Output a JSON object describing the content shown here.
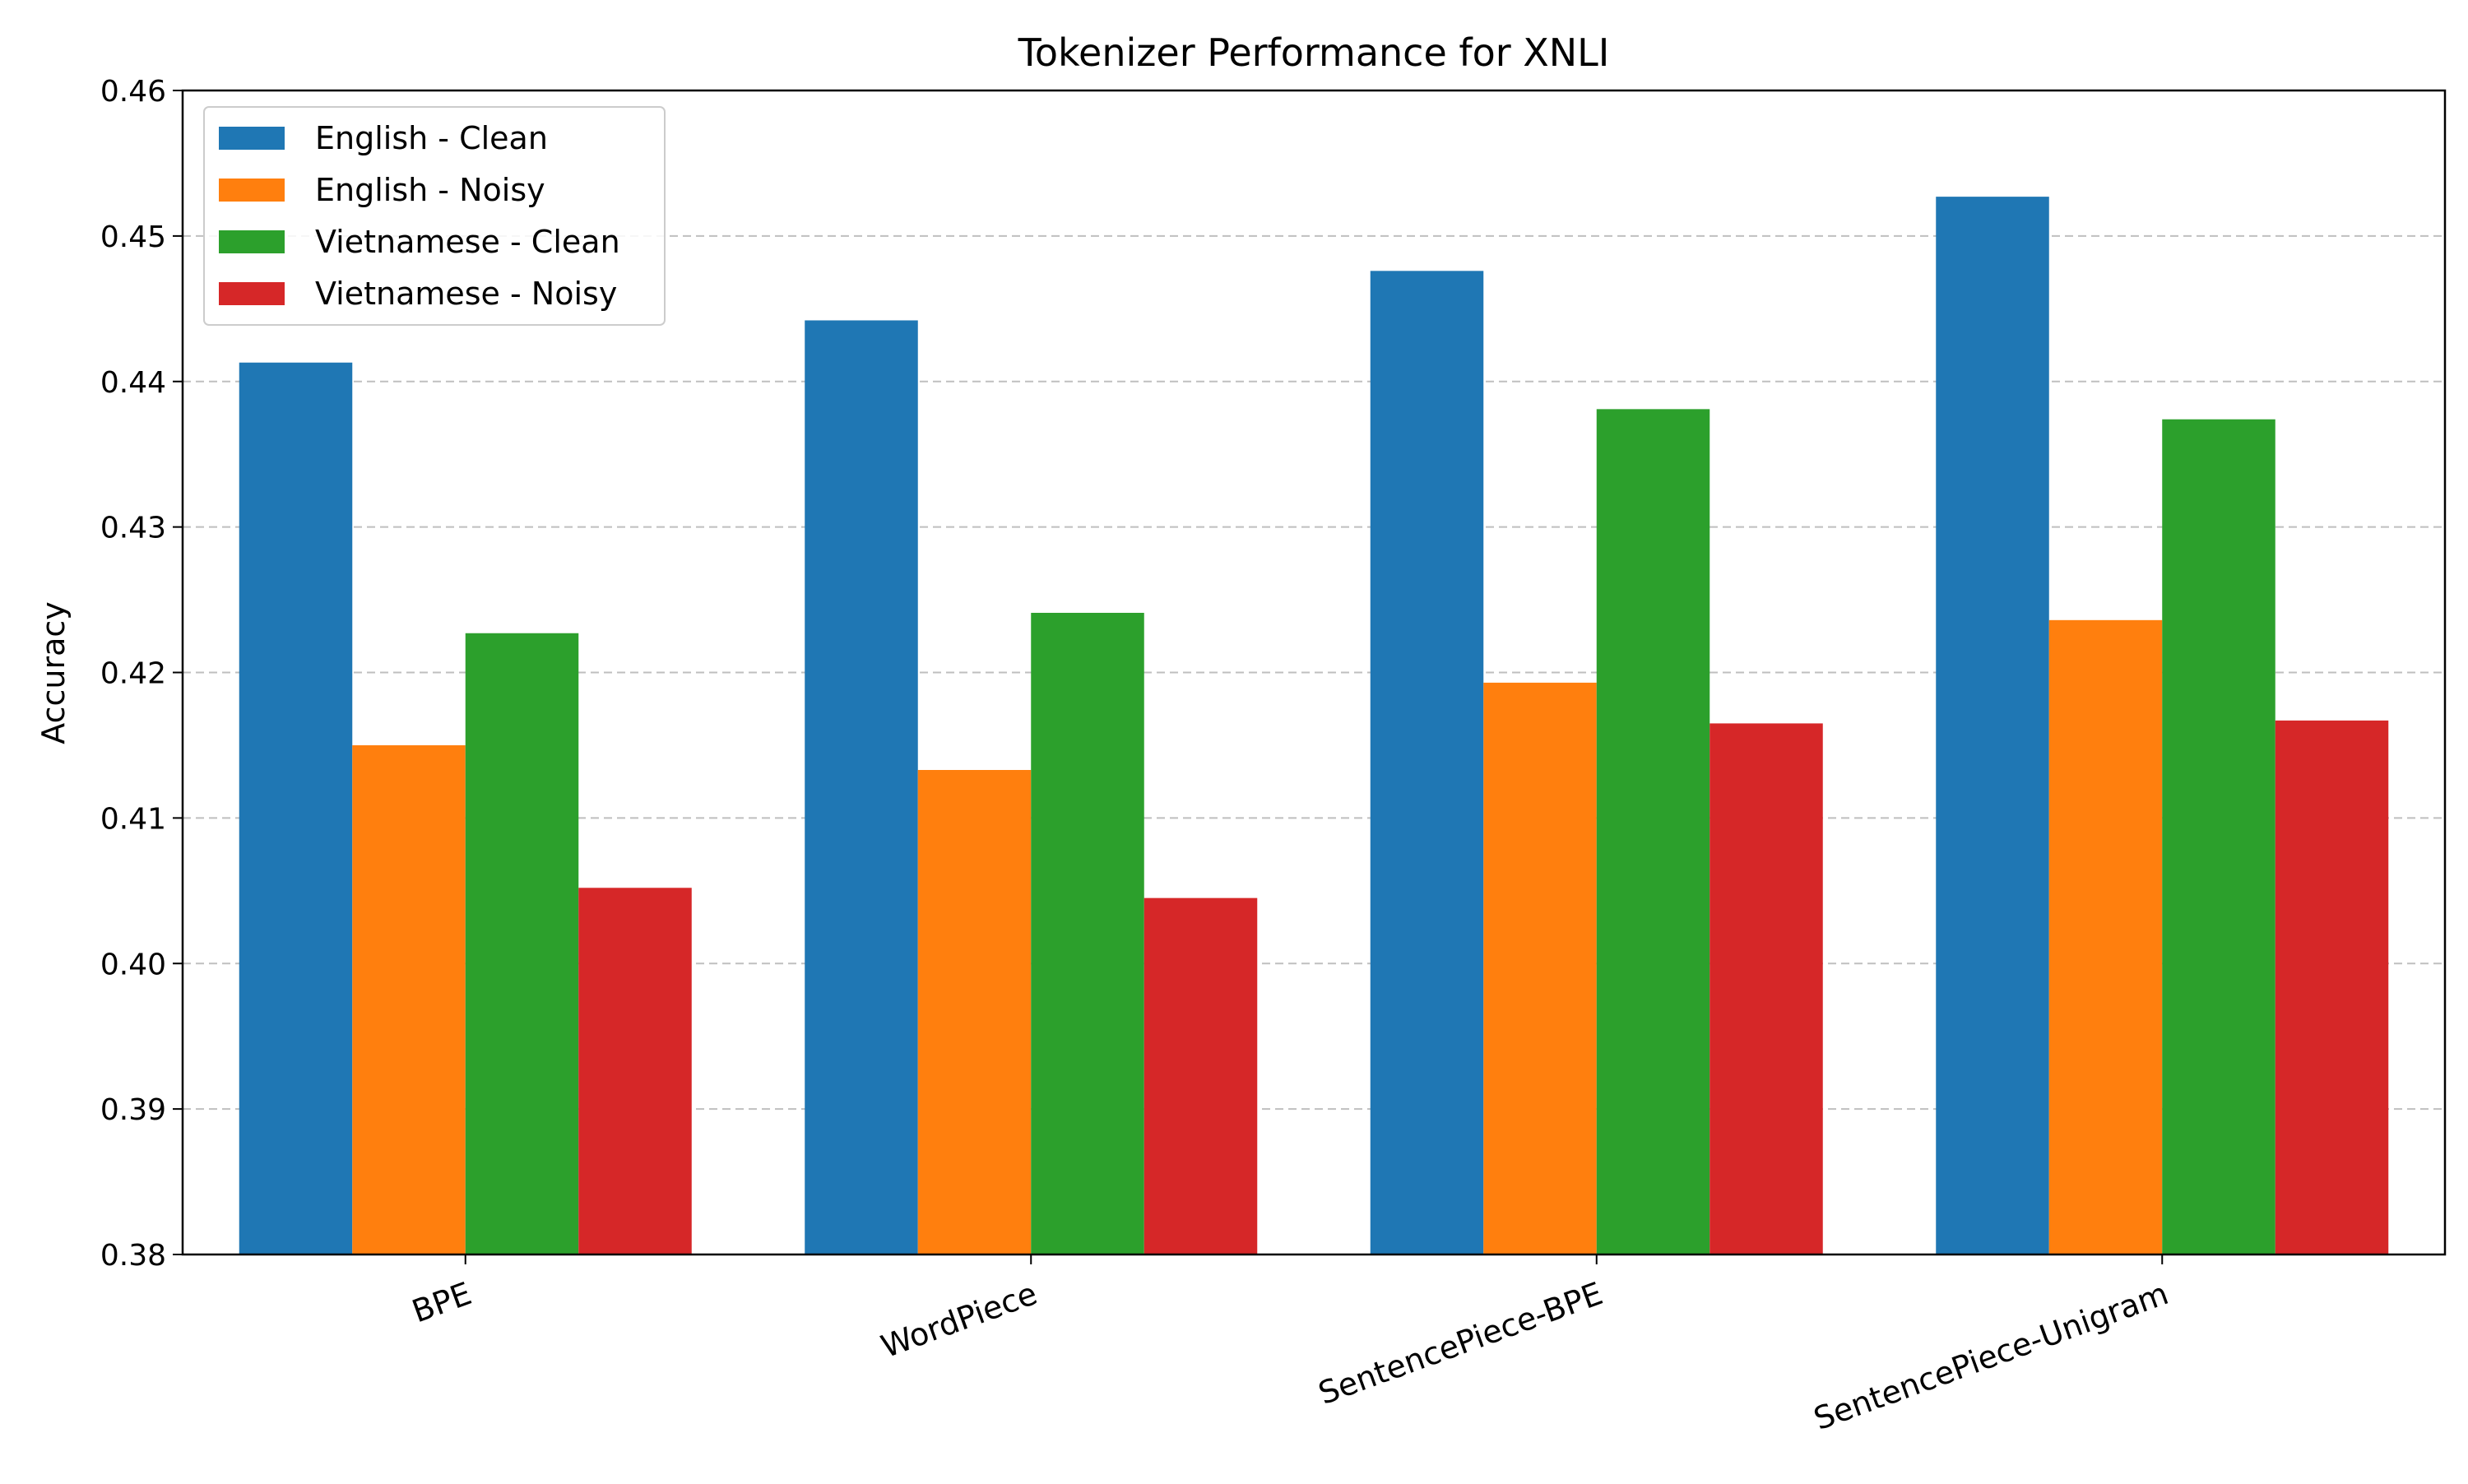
{
  "chart_data": {
    "type": "bar",
    "title": "Tokenizer Performance for XNLI",
    "xlabel": "",
    "ylabel": "Accuracy",
    "categories": [
      "BPE",
      "WordPiece",
      "SentencePiece-BPE",
      "SentencePiece-Unigram"
    ],
    "series": [
      {
        "name": "English - Clean",
        "color": "#1f77b4",
        "values": [
          0.4413,
          0.4442,
          0.4476,
          0.4527
        ]
      },
      {
        "name": "English - Noisy",
        "color": "#ff7f0e",
        "values": [
          0.415,
          0.4133,
          0.4193,
          0.4236
        ]
      },
      {
        "name": "Vietnamese - Clean",
        "color": "#2ca02c",
        "values": [
          0.4227,
          0.4241,
          0.4381,
          0.4374
        ]
      },
      {
        "name": "Vietnamese - Noisy",
        "color": "#d62728",
        "values": [
          0.4052,
          0.4045,
          0.4165,
          0.4167
        ]
      }
    ],
    "ylim": [
      0.38,
      0.46
    ],
    "yticks": [
      "0.38",
      "0.39",
      "0.40",
      "0.41",
      "0.42",
      "0.43",
      "0.44",
      "0.45",
      "0.46"
    ],
    "grid": "y-dashed",
    "legend_position": "top-left"
  }
}
